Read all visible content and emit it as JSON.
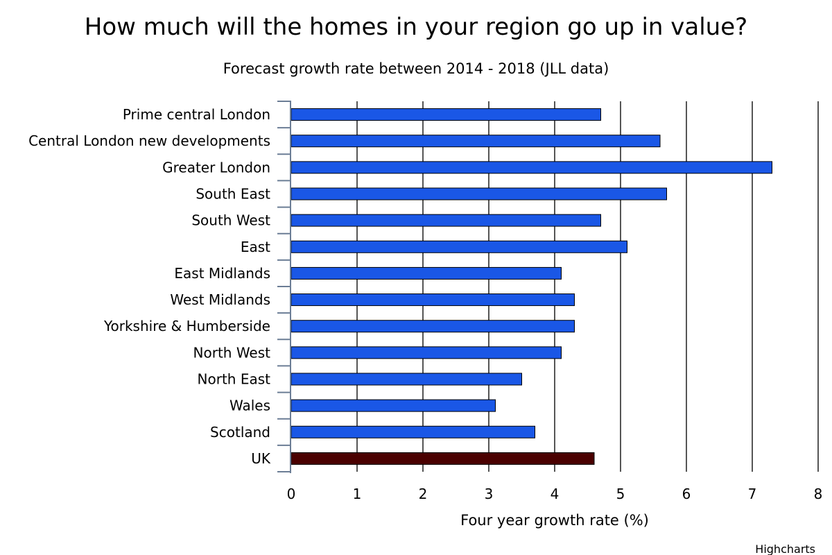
{
  "chart_data": {
    "type": "bar",
    "orientation": "horizontal",
    "title": "How much will the homes in your region go up in value?",
    "subtitle": "Forecast growth rate between 2014 - 2018 (JLL data)",
    "xlabel": "Four year growth rate (%)",
    "ylabel": "",
    "categories": [
      "Prime central London",
      "Central London new developments",
      "Greater London",
      "South East",
      "South West",
      "East",
      "East Midlands",
      "West Midlands",
      "Yorkshire & Humberside",
      "North West",
      "North East",
      "Wales",
      "Scotland",
      "UK"
    ],
    "values": [
      4.7,
      5.6,
      7.3,
      5.7,
      4.7,
      5.1,
      4.1,
      4.3,
      4.3,
      4.1,
      3.5,
      3.1,
      3.7,
      4.6
    ],
    "bar_colors": [
      "#1a57e6",
      "#1a57e6",
      "#1a57e6",
      "#1a57e6",
      "#1a57e6",
      "#1a57e6",
      "#1a57e6",
      "#1a57e6",
      "#1a57e6",
      "#1a57e6",
      "#1a57e6",
      "#1a57e6",
      "#1a57e6",
      "#4a0000"
    ],
    "xlim": [
      0,
      8
    ],
    "ticks": [
      "0",
      "1",
      "2",
      "3",
      "4",
      "5",
      "6",
      "7",
      "8"
    ],
    "grid": true,
    "legend": "none",
    "credits": "Highcharts"
  }
}
